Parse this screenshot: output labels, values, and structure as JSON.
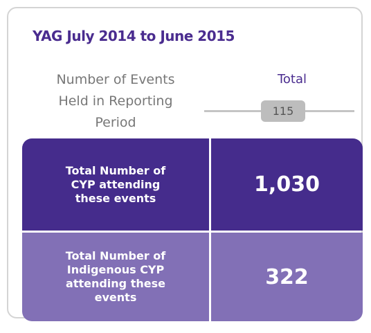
{
  "header": {
    "title": "YAG July 2014 to June 2015"
  },
  "events": {
    "label_lines": [
      "Number of Events",
      "Held in Reporting",
      "Period"
    ],
    "column": "Total",
    "value": "115"
  },
  "rows": [
    {
      "label_lines": [
        "Total Number of",
        "CYP attending",
        "these events"
      ],
      "value": "1,030"
    },
    {
      "label_lines": [
        "Total Number of",
        "Indigenous CYP",
        "attending these",
        "events"
      ],
      "value": "322"
    }
  ]
}
